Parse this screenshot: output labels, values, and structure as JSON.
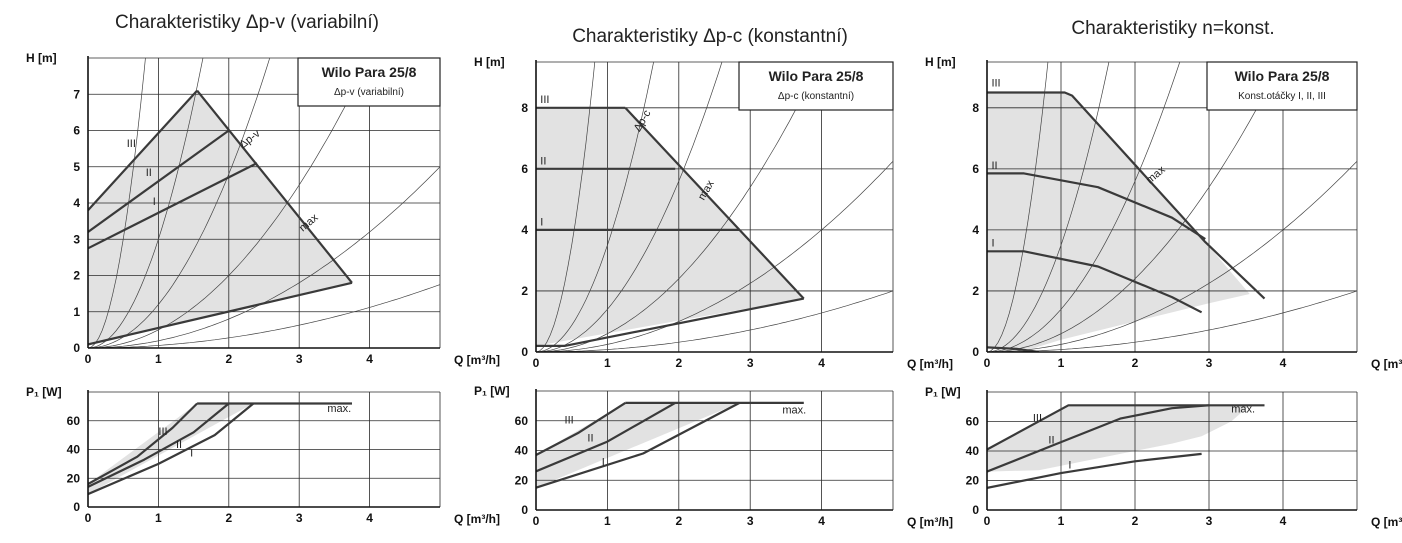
{
  "colors": {
    "fill": "#e2e2e2",
    "line": "#3a3a3a",
    "grid": "#2a2a2a"
  },
  "chart_data": [
    {
      "type": "line",
      "title": "Charakteristiky Δp-v (variabilní)",
      "legend_title": "Wilo Para 25/8",
      "legend_sub": "Δp-v (variabilní)",
      "h_chart": {
        "ylabel": "H [m]",
        "xlabel": "Q [m³/h]",
        "xlim": [
          0,
          5
        ],
        "ylim": [
          0,
          8
        ],
        "xticks": [
          "0",
          "1",
          "2",
          "3",
          "4"
        ],
        "yticks": [
          "0",
          "1",
          "2",
          "3",
          "4",
          "5",
          "6",
          "7"
        ],
        "region": [
          [
            0,
            3.8
          ],
          [
            1.55,
            7.1
          ],
          [
            3.75,
            1.8
          ],
          [
            0,
            0.1
          ]
        ],
        "series": [
          {
            "name": "III",
            "points": [
              [
                0,
                3.8
              ],
              [
                1.55,
                7.1
              ]
            ]
          },
          {
            "name": "II",
            "points": [
              [
                0,
                3.2
              ],
              [
                2.0,
                6.0
              ]
            ]
          },
          {
            "name": "I",
            "points": [
              [
                0,
                2.75
              ],
              [
                2.4,
                5.1
              ]
            ]
          },
          {
            "name": "max",
            "points": [
              [
                1.55,
                7.1
              ],
              [
                3.75,
                1.8
              ]
            ]
          },
          {
            "name": "min",
            "points": [
              [
                0,
                0.1
              ],
              [
                3.75,
                1.8
              ]
            ]
          }
        ],
        "labels": [
          {
            "text": "III",
            "x": 0.55,
            "y": 5.55,
            "r": 0
          },
          {
            "text": "II",
            "x": 0.82,
            "y": 4.75,
            "r": 0
          },
          {
            "text": "I",
            "x": 0.92,
            "y": 3.95,
            "r": 0
          },
          {
            "text": "Δp-v",
            "x": 2.2,
            "y": 5.5,
            "r": -38
          },
          {
            "text": "max",
            "x": 3.05,
            "y": 3.2,
            "r": -40
          }
        ],
        "sys_k": [
          12,
          3,
          1.2,
          0.5,
          0.2,
          0.07
        ]
      },
      "p_chart": {
        "ylabel": "P₁ [W]",
        "xlabel": "Q [m³/h]",
        "xlim": [
          0,
          5
        ],
        "ylim": [
          0,
          80
        ],
        "xticks": [
          "0",
          "1",
          "2",
          "3",
          "4"
        ],
        "yticks": [
          "0",
          "20",
          "40",
          "60"
        ],
        "region": [
          [
            0,
            16
          ],
          [
            1.55,
            72
          ],
          [
            2.35,
            72
          ],
          [
            0,
            9
          ]
        ],
        "series": [
          {
            "name": "III",
            "points": [
              [
                0,
                16
              ],
              [
                0.7,
                35
              ],
              [
                1.2,
                55
              ],
              [
                1.55,
                72
              ]
            ]
          },
          {
            "name": "II",
            "points": [
              [
                0,
                14
              ],
              [
                0.8,
                33
              ],
              [
                1.5,
                52
              ],
              [
                2.0,
                72
              ]
            ]
          },
          {
            "name": "I",
            "points": [
              [
                0,
                9
              ],
              [
                1.0,
                30
              ],
              [
                1.8,
                50
              ],
              [
                2.35,
                72
              ]
            ]
          },
          {
            "name": "max.",
            "points": [
              [
                1.55,
                72
              ],
              [
                3.75,
                72
              ]
            ]
          }
        ],
        "labels": [
          {
            "text": "III",
            "x": 1.0,
            "y": 50
          },
          {
            "text": "II",
            "x": 1.25,
            "y": 41
          },
          {
            "text": "I",
            "x": 1.45,
            "y": 35
          },
          {
            "text": "max.",
            "x": 3.4,
            "y": 66
          }
        ]
      }
    },
    {
      "type": "line",
      "title": "Charakteristiky Δp-c (konstantní)",
      "legend_title": "Wilo Para 25/8",
      "legend_sub": "Δp-c (konstantní)",
      "h_chart": {
        "ylabel": "H [m]",
        "xlabel": "Q [m³/h]",
        "xlim": [
          0,
          5
        ],
        "ylim": [
          0,
          9.5
        ],
        "xticks": [
          "0",
          "1",
          "2",
          "3",
          "4"
        ],
        "yticks": [
          "0",
          "2",
          "4",
          "6",
          "8"
        ],
        "region": [
          [
            0,
            8
          ],
          [
            1.25,
            8
          ],
          [
            3.75,
            1.75
          ],
          [
            0,
            0.2
          ]
        ],
        "series": [
          {
            "name": "III",
            "points": [
              [
                0,
                8
              ],
              [
                1.25,
                8
              ]
            ]
          },
          {
            "name": "II",
            "points": [
              [
                0,
                6
              ],
              [
                1.95,
                6
              ]
            ]
          },
          {
            "name": "I",
            "points": [
              [
                0,
                4
              ],
              [
                2.85,
                4
              ]
            ]
          },
          {
            "name": "max",
            "points": [
              [
                1.25,
                8
              ],
              [
                3.75,
                1.75
              ]
            ]
          },
          {
            "name": "min",
            "points": [
              [
                0,
                0.2
              ],
              [
                0.4,
                0.2
              ],
              [
                3.75,
                1.75
              ]
            ]
          }
        ],
        "labels": [
          {
            "text": "III",
            "x": 0.06,
            "y": 8.15,
            "r": 0
          },
          {
            "text": "II",
            "x": 0.06,
            "y": 6.15,
            "r": 0
          },
          {
            "text": "I",
            "x": 0.06,
            "y": 4.15,
            "r": 0
          },
          {
            "text": "Δp-c",
            "x": 1.45,
            "y": 7.2,
            "r": -60
          },
          {
            "text": "max",
            "x": 2.35,
            "y": 4.95,
            "r": -60
          }
        ],
        "sys_k": [
          14,
          3.5,
          1.4,
          0.6,
          0.25,
          0.08
        ]
      },
      "p_chart": {
        "ylabel": "P₁ [W]",
        "xlabel": "Q [m³/h]",
        "xlim": [
          0,
          5
        ],
        "ylim": [
          0,
          80
        ],
        "xticks": [
          "0",
          "1",
          "2",
          "3",
          "4"
        ],
        "yticks": [
          "0",
          "20",
          "40",
          "60"
        ],
        "region": [
          [
            0,
            37
          ],
          [
            1.25,
            72
          ],
          [
            2.85,
            72
          ],
          [
            0,
            15
          ]
        ],
        "series": [
          {
            "name": "III",
            "points": [
              [
                0,
                37
              ],
              [
                0.6,
                52
              ],
              [
                1.25,
                72
              ]
            ]
          },
          {
            "name": "II",
            "points": [
              [
                0,
                26
              ],
              [
                1.0,
                46
              ],
              [
                1.95,
                72
              ]
            ]
          },
          {
            "name": "I",
            "points": [
              [
                0,
                15
              ],
              [
                1.5,
                38
              ],
              [
                2.85,
                72
              ]
            ]
          },
          {
            "name": "max.",
            "points": [
              [
                1.25,
                72
              ],
              [
                3.75,
                72
              ]
            ]
          }
        ],
        "labels": [
          {
            "text": "III",
            "x": 0.4,
            "y": 58
          },
          {
            "text": "II",
            "x": 0.72,
            "y": 46
          },
          {
            "text": "I",
            "x": 0.92,
            "y": 30
          },
          {
            "text": "max.",
            "x": 3.45,
            "y": 65
          }
        ]
      }
    },
    {
      "type": "line",
      "title": "Charakteristiky n=konst.",
      "legend_title": "Wilo Para 25/8",
      "legend_sub": "Konst.otáčky  I, II, III",
      "h_chart": {
        "ylabel": "H [m]",
        "xlabel": "Q [m³/h]",
        "xlim": [
          0,
          5
        ],
        "ylim": [
          0,
          9.5
        ],
        "xticks": [
          "0",
          "1",
          "2",
          "3",
          "4"
        ],
        "yticks": [
          "0",
          "2",
          "4",
          "6",
          "8"
        ],
        "region": [
          [
            0,
            8.5
          ],
          [
            1.1,
            8.5
          ],
          [
            2.95,
            3.6
          ],
          [
            3.55,
            1.9
          ],
          [
            3.0,
            1.6
          ],
          [
            2.0,
            1.0
          ],
          [
            1.0,
            0.4
          ],
          [
            0.6,
            0.1
          ],
          [
            0,
            0.15
          ]
        ],
        "series": [
          {
            "name": "III",
            "points": [
              [
                0,
                8.5
              ],
              [
                1.05,
                8.5
              ],
              [
                1.15,
                8.4
              ],
              [
                2.95,
                3.6
              ],
              [
                3.75,
                1.75
              ]
            ]
          },
          {
            "name": "II",
            "points": [
              [
                0,
                5.85
              ],
              [
                0.5,
                5.85
              ],
              [
                1.5,
                5.4
              ],
              [
                2.5,
                4.4
              ],
              [
                2.95,
                3.7
              ]
            ]
          },
          {
            "name": "I",
            "points": [
              [
                0,
                3.3
              ],
              [
                0.5,
                3.3
              ],
              [
                1.5,
                2.8
              ],
              [
                2.5,
                1.8
              ],
              [
                2.9,
                1.3
              ]
            ]
          },
          {
            "name": "min",
            "points": [
              [
                0,
                0.15
              ],
              [
                0.4,
                0.1
              ],
              [
                0.7,
                0.0
              ]
            ]
          }
        ],
        "labels": [
          {
            "text": "III",
            "x": 0.06,
            "y": 8.7,
            "r": 0
          },
          {
            "text": "II",
            "x": 0.06,
            "y": 6.0,
            "r": 0
          },
          {
            "text": "I",
            "x": 0.06,
            "y": 3.45,
            "r": 0
          },
          {
            "text": "max",
            "x": 2.2,
            "y": 5.5,
            "r": -40
          }
        ],
        "sys_k": [
          14,
          3.5,
          1.4,
          0.6,
          0.25,
          0.08
        ]
      },
      "p_chart": {
        "ylabel": "P₁ [W]",
        "xlabel": "Q [m³/h]",
        "xlim": [
          0,
          5
        ],
        "ylim": [
          0,
          80
        ],
        "xticks": [
          "0",
          "1",
          "2",
          "3",
          "4"
        ],
        "yticks": [
          "0",
          "20",
          "40",
          "60"
        ],
        "region": [
          [
            0,
            41
          ],
          [
            1.1,
            71
          ],
          [
            3.55,
            71
          ],
          [
            3.3,
            60
          ],
          [
            2.9,
            50
          ],
          [
            2.5,
            45
          ],
          [
            1.8,
            38
          ],
          [
            0.7,
            27
          ],
          [
            0,
            26
          ]
        ],
        "series": [
          {
            "name": "III",
            "points": [
              [
                0,
                41
              ],
              [
                1.1,
                71
              ],
              [
                3.75,
                71
              ]
            ]
          },
          {
            "name": "II",
            "points": [
              [
                0,
                26
              ],
              [
                1.0,
                46
              ],
              [
                1.8,
                62
              ],
              [
                2.5,
                69
              ],
              [
                3.0,
                71
              ]
            ]
          },
          {
            "name": "I",
            "points": [
              [
                0,
                15
              ],
              [
                1.0,
                25
              ],
              [
                2.0,
                33
              ],
              [
                2.9,
                38
              ]
            ]
          }
        ],
        "labels": [
          {
            "text": "III",
            "x": 0.62,
            "y": 60
          },
          {
            "text": "II",
            "x": 0.83,
            "y": 45
          },
          {
            "text": "I",
            "x": 1.1,
            "y": 28
          },
          {
            "text": "max.",
            "x": 3.3,
            "y": 66
          }
        ]
      }
    }
  ]
}
